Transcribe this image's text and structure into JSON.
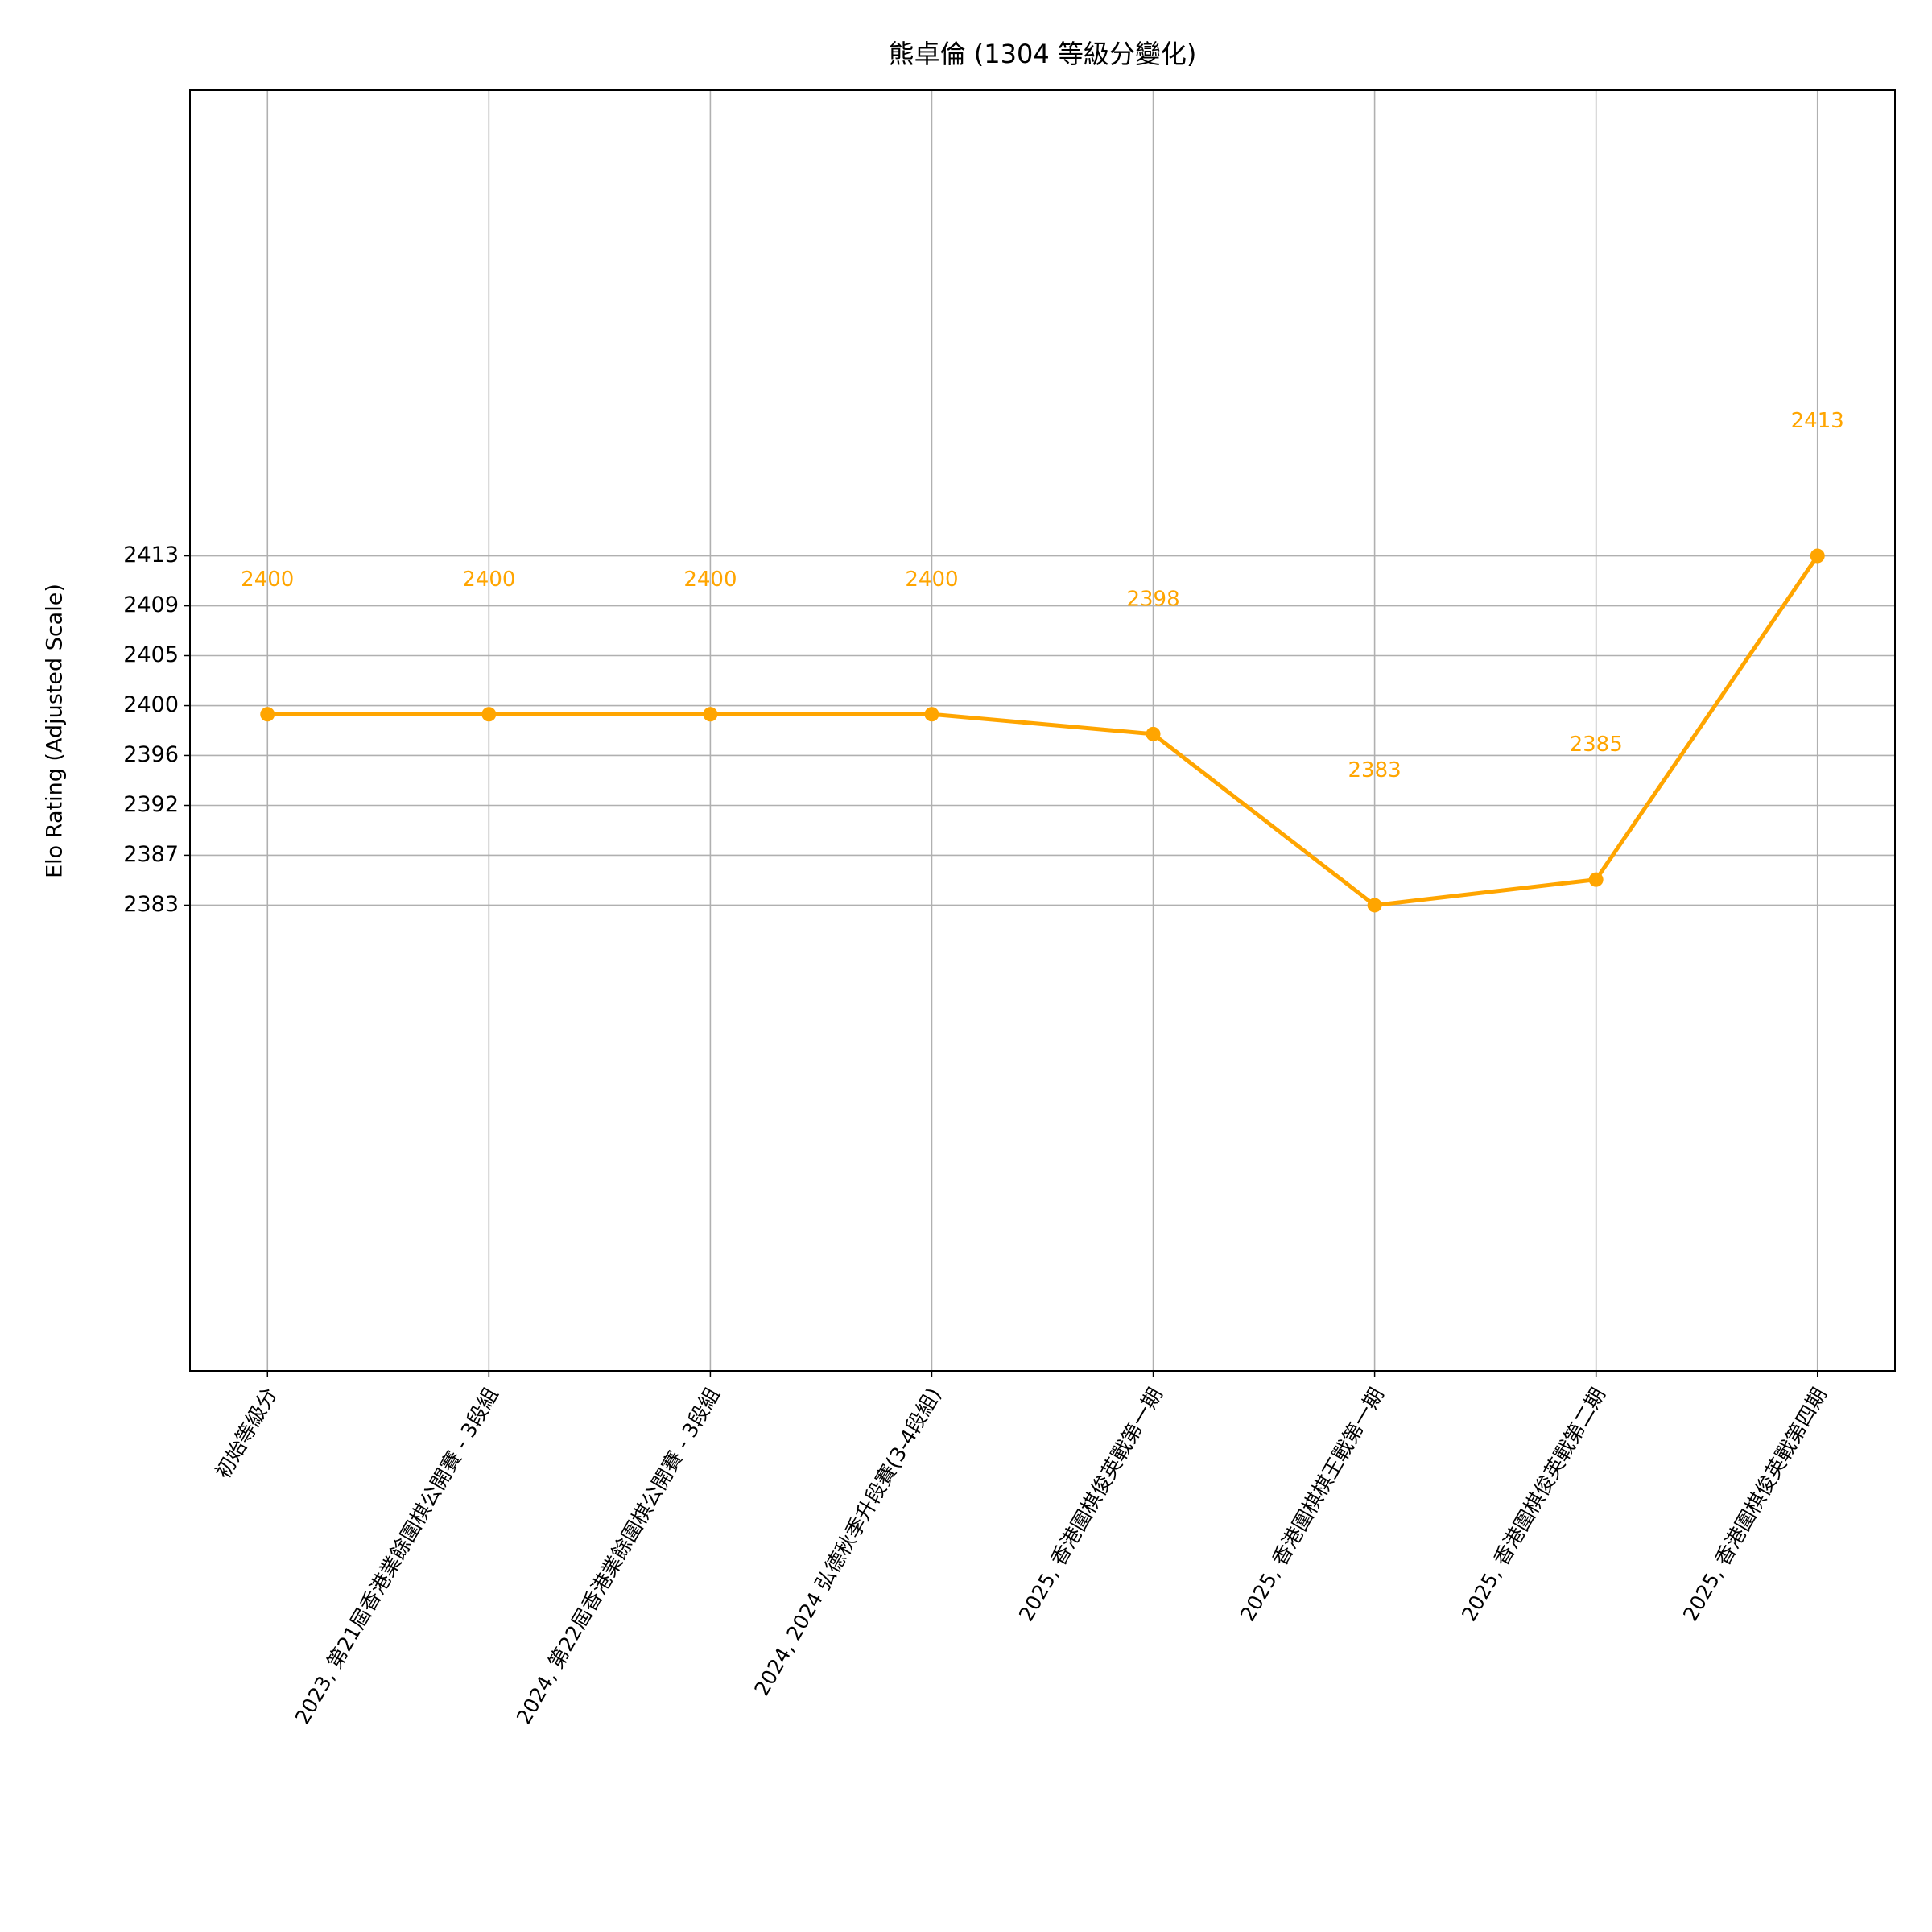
{
  "chart_data": {
    "type": "line",
    "title": "熊卓倫 (1304 等級分變化)",
    "ylabel": "Elo Rating (Adjusted Scale)",
    "categories": [
      "初始等級分",
      "2023, 第21屆香港業餘圍棋公開賽 - 3段組",
      "2024, 第22屆香港業餘圍棋公開賽 - 3段組",
      "2024, 2024 弘德秋季升段賽(3-4段組)",
      "2025, 香港圍棋俊英戰第一期",
      "2025, 香港圍棋棋王戰第一期",
      "2025, 香港圍棋俊英戰第二期",
      "2025, 香港圍棋俊英戰第四期"
    ],
    "values": [
      2399.6,
      2399.6,
      2399.6,
      2399.6,
      2397.9,
      2383.2,
      2385.4,
      2413.2
    ],
    "value_labels": [
      "2400",
      "2400",
      "2400",
      "2400",
      "2398",
      "2383",
      "2385",
      "2413"
    ],
    "color": "#ffa500",
    "ylim": [
      2343.2,
      2453.2
    ],
    "yticks": [
      {
        "value": 2383.2,
        "label": "2383"
      },
      {
        "value": 2387.49,
        "label": "2387"
      },
      {
        "value": 2391.77,
        "label": "2392"
      },
      {
        "value": 2396.06,
        "label": "2396"
      },
      {
        "value": 2400.34,
        "label": "2400"
      },
      {
        "value": 2404.63,
        "label": "2405"
      },
      {
        "value": 2408.91,
        "label": "2409"
      },
      {
        "value": 2413.2,
        "label": "2413"
      }
    ],
    "grid": true
  }
}
